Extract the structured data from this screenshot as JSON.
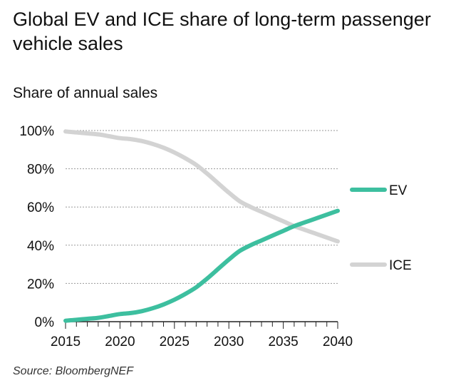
{
  "title": "Global EV and ICE share of long-term passenger vehicle sales",
  "source": "Source: BloombergNEF",
  "chart_data": {
    "type": "line",
    "title": "Global EV and ICE share of long-term passenger vehicle sales",
    "ylabel": "Share of annual sales",
    "xlabel": "",
    "xlim": [
      2015,
      2040
    ],
    "ylim": [
      0,
      100
    ],
    "x_ticks": [
      2015,
      2020,
      2025,
      2030,
      2035,
      2040
    ],
    "y_ticks": [
      0,
      20,
      40,
      60,
      80,
      100
    ],
    "y_tick_labels": [
      "0%",
      "20%",
      "40%",
      "60%",
      "80%",
      "100%"
    ],
    "grid": "horizontal dashed",
    "legend": "right, next to line ends",
    "series": [
      {
        "name": "EV",
        "color": "#3dbf9f",
        "x": [
          2015,
          2016,
          2017,
          2018,
          2019,
          2020,
          2021,
          2022,
          2023,
          2024,
          2025,
          2026,
          2027,
          2028,
          2029,
          2030,
          2031,
          2032,
          2033,
          2034,
          2035,
          2036,
          2037,
          2038,
          2039,
          2040
        ],
        "values": [
          0.5,
          1,
          1.5,
          2,
          3,
          4,
          4.5,
          5.5,
          7,
          9,
          11.5,
          14.5,
          18,
          22.5,
          27.5,
          32.5,
          37,
          40,
          42.5,
          45,
          47.5,
          50,
          52,
          54,
          56,
          58
        ]
      },
      {
        "name": "ICE",
        "color": "#d3d3d3",
        "x": [
          2015,
          2016,
          2017,
          2018,
          2019,
          2020,
          2021,
          2022,
          2023,
          2024,
          2025,
          2026,
          2027,
          2028,
          2029,
          2030,
          2031,
          2032,
          2033,
          2034,
          2035,
          2036,
          2037,
          2038,
          2039,
          2040
        ],
        "values": [
          99.5,
          99,
          98.5,
          98,
          97,
          96,
          95.5,
          94.5,
          93,
          91,
          88.5,
          85.5,
          82,
          77.5,
          72.5,
          67.5,
          63,
          60,
          57.5,
          55,
          52.5,
          50,
          48,
          46,
          44,
          42
        ]
      }
    ]
  }
}
